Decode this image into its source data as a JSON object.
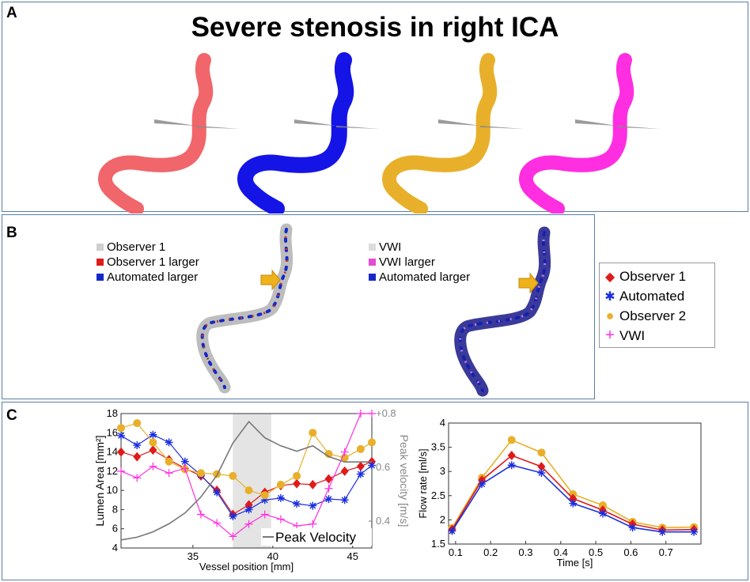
{
  "panels": {
    "a": "A",
    "b": "B",
    "c": "C"
  },
  "title": "Severe stenosis in right ICA",
  "vessel_colors": [
    "#f0666a",
    "#1414e6",
    "#e8b02a",
    "#ff2ee0"
  ],
  "legend_left": [
    {
      "label": "Observer 1",
      "color": "#cfcfcf"
    },
    {
      "label": "Observer 1 larger",
      "color": "#e01a1a"
    },
    {
      "label": "Automated larger",
      "color": "#1428c8"
    }
  ],
  "legend_right": [
    {
      "label": "VWI",
      "color": "#dcdcdc"
    },
    {
      "label": "VWI larger",
      "color": "#e64cd2"
    },
    {
      "label": "Automated larger",
      "color": "#1428c8"
    }
  ],
  "marker_legend": [
    {
      "label": "Observer 1",
      "color": "#e01a1a",
      "marker": "◆"
    },
    {
      "label": "Automated",
      "color": "#1a2ee0",
      "marker": "✱"
    },
    {
      "label": "Observer 2",
      "color": "#e8b02a",
      "marker": "●"
    },
    {
      "label": "VWI",
      "color": "#ff2ee0",
      "marker": "+"
    }
  ],
  "chart_data": [
    {
      "type": "line",
      "title": "",
      "xlabel": "Vessel position [mm]",
      "ylabel": "Lumen Area [mm²]",
      "y2label": "Peak velocity [m/s]",
      "xlim": [
        30.5,
        46.2
      ],
      "ylim": [
        4,
        18
      ],
      "y2lim": [
        0.3,
        0.8
      ],
      "xticks": [
        35,
        40,
        45
      ],
      "yticks": [
        4,
        6,
        8,
        10,
        12,
        14,
        16,
        18
      ],
      "y2ticks": [
        0.4,
        0.6,
        0.8
      ],
      "y2ticklabels": [
        "0.4",
        "0.6",
        "+0.8"
      ],
      "shaded_region": [
        37.5,
        39.9
      ],
      "legend": "Peak Velocity",
      "x": [
        30.5,
        31.5,
        32.5,
        33.5,
        34.5,
        35.5,
        36.5,
        37.5,
        38.5,
        39.5,
        40.5,
        41.5,
        42.5,
        43.5,
        44.5,
        45.5,
        46.2
      ],
      "series": [
        {
          "name": "Observer 1",
          "color": "#e01a1a",
          "values": [
            14,
            13.5,
            14.2,
            13.2,
            12.3,
            11.5,
            10,
            7.5,
            8.5,
            9.8,
            10.5,
            10.7,
            10.6,
            11.2,
            12,
            12.5,
            13
          ]
        },
        {
          "name": "Automated",
          "color": "#1a2ee0",
          "values": [
            15.7,
            14.7,
            15.8,
            15,
            13,
            11.6,
            9.8,
            7.3,
            8,
            9,
            9.2,
            8.6,
            8.4,
            9.1,
            9,
            11.7,
            12.6
          ]
        },
        {
          "name": "Observer 2",
          "color": "#e8b02a",
          "values": [
            16.5,
            17,
            15,
            13,
            12.2,
            11.8,
            11.7,
            11.5,
            10,
            9.5,
            10.6,
            11.5,
            16,
            13.8,
            13.4,
            14.3,
            15
          ]
        },
        {
          "name": "VWI",
          "color": "#ff2ee0",
          "values": [
            12,
            11.3,
            12.5,
            11.8,
            12.3,
            7.5,
            6.6,
            5.2,
            6.5,
            7.5,
            7,
            6.3,
            6.5,
            10.2,
            14,
            18,
            18
          ]
        },
        {
          "name": "Peak Velocity",
          "axis": "y2",
          "color": "#777777",
          "values": [
            0.33,
            0.34,
            0.36,
            0.39,
            0.43,
            0.49,
            0.57,
            0.69,
            0.77,
            0.71,
            0.68,
            0.66,
            0.68,
            0.64,
            0.62,
            0.62,
            0.62
          ]
        }
      ]
    },
    {
      "type": "line",
      "title": "",
      "xlabel": "Time [s]",
      "ylabel": "Flow rate [ml/s]",
      "xlim": [
        0.08,
        0.8
      ],
      "ylim": [
        1.5,
        4
      ],
      "xticks": [
        0.1,
        0.2,
        0.3,
        0.4,
        0.5,
        0.6,
        0.7
      ],
      "yticks": [
        1.5,
        2,
        2.5,
        3,
        3.5,
        4
      ],
      "x": [
        0.09,
        0.175,
        0.26,
        0.345,
        0.435,
        0.52,
        0.605,
        0.69,
        0.78
      ],
      "series": [
        {
          "name": "Observer 1",
          "color": "#e01a1a",
          "values": [
            1.8,
            2.82,
            3.33,
            3.1,
            2.44,
            2.2,
            1.91,
            1.79,
            1.8
          ]
        },
        {
          "name": "Automated",
          "color": "#1a2ee0",
          "values": [
            1.77,
            2.74,
            3.13,
            2.97,
            2.34,
            2.13,
            1.84,
            1.75,
            1.75
          ]
        },
        {
          "name": "Observer 2",
          "color": "#e8b02a",
          "values": [
            1.83,
            2.87,
            3.65,
            3.39,
            2.53,
            2.3,
            1.96,
            1.84,
            1.85
          ]
        }
      ]
    }
  ]
}
